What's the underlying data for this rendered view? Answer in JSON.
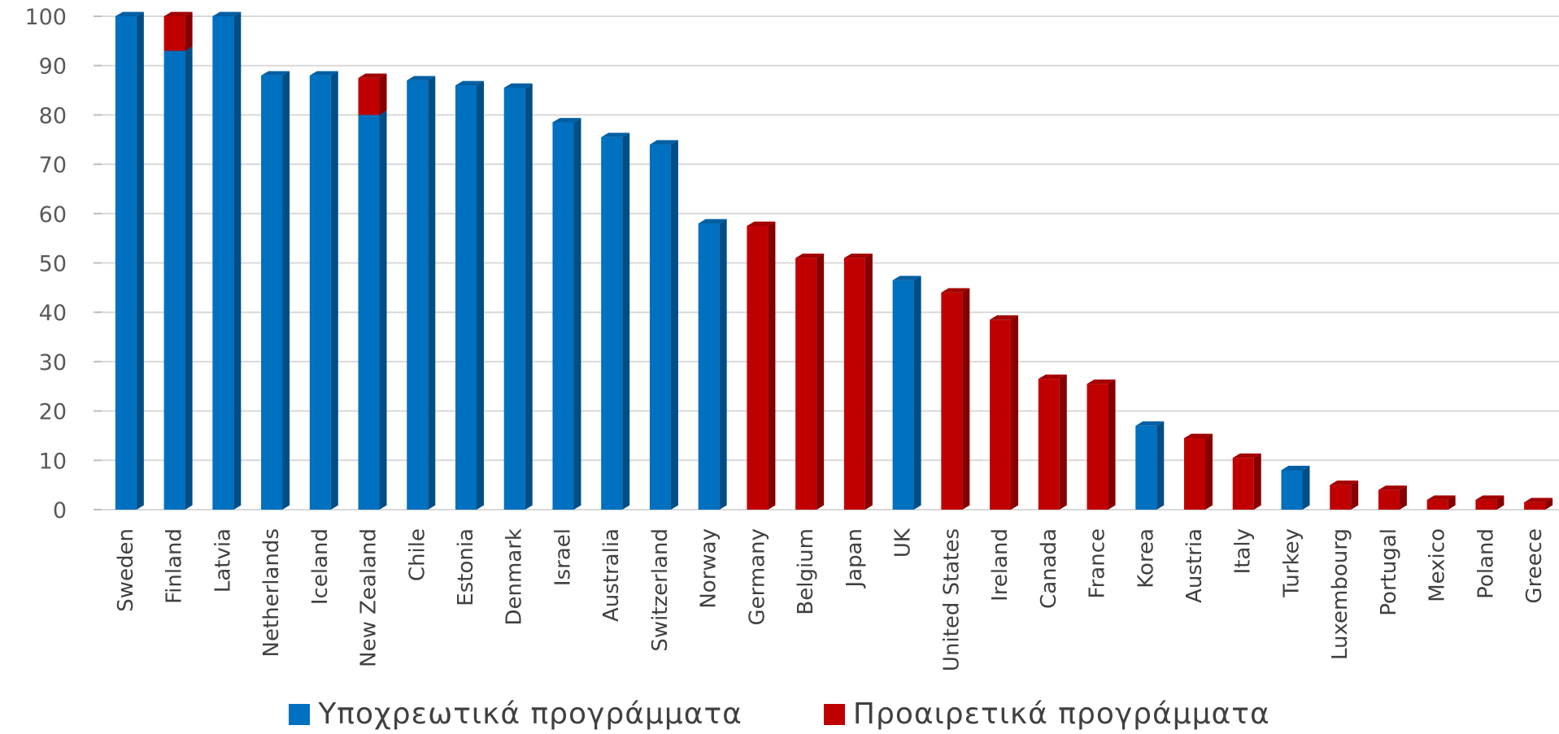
{
  "chart_data": {
    "type": "bar",
    "stacked": true,
    "categories": [
      "Sweden",
      "Finland",
      "Latvia",
      "Netherlands",
      "Iceland",
      "New Zealand",
      "Chile",
      "Estonia",
      "Denmark",
      "Israel",
      "Australia",
      "Switzerland",
      "Norway",
      "Germany",
      "Belgium",
      "Japan",
      "UK",
      "United States",
      "Ireland",
      "Canada",
      "France",
      "Korea",
      "Austria",
      "Italy",
      "Turkey",
      "Luxembourg",
      "Portugal",
      "Mexico",
      "Poland",
      "Greece"
    ],
    "series": [
      {
        "name": "Υποχρεωτικά προγράμματα",
        "color": "#0070c0",
        "values": [
          100,
          93,
          100,
          88,
          88,
          80,
          87,
          86,
          85.5,
          78.5,
          75.5,
          74,
          58,
          0,
          0,
          0,
          46.5,
          0,
          0,
          0,
          0,
          17,
          0,
          0,
          8,
          0,
          0,
          0,
          0,
          0
        ]
      },
      {
        "name": "Προαιρετικά προγράμματα",
        "color": "#c00000",
        "values": [
          0,
          7,
          0,
          0,
          0,
          7.5,
          0,
          0,
          0,
          0,
          0,
          0,
          0,
          57.5,
          51,
          51,
          0,
          44,
          38.5,
          26.5,
          25.5,
          0,
          14.5,
          10.5,
          0,
          5,
          4,
          2,
          2,
          1.5
        ]
      }
    ],
    "ylim": [
      0,
      100
    ],
    "yticks": [
      "0",
      "10",
      "20",
      "30",
      "40",
      "50",
      "60",
      "70",
      "80",
      "90",
      "100"
    ],
    "grid": true,
    "legend_position": "bottom",
    "title": "",
    "xlabel": "",
    "ylabel": ""
  }
}
